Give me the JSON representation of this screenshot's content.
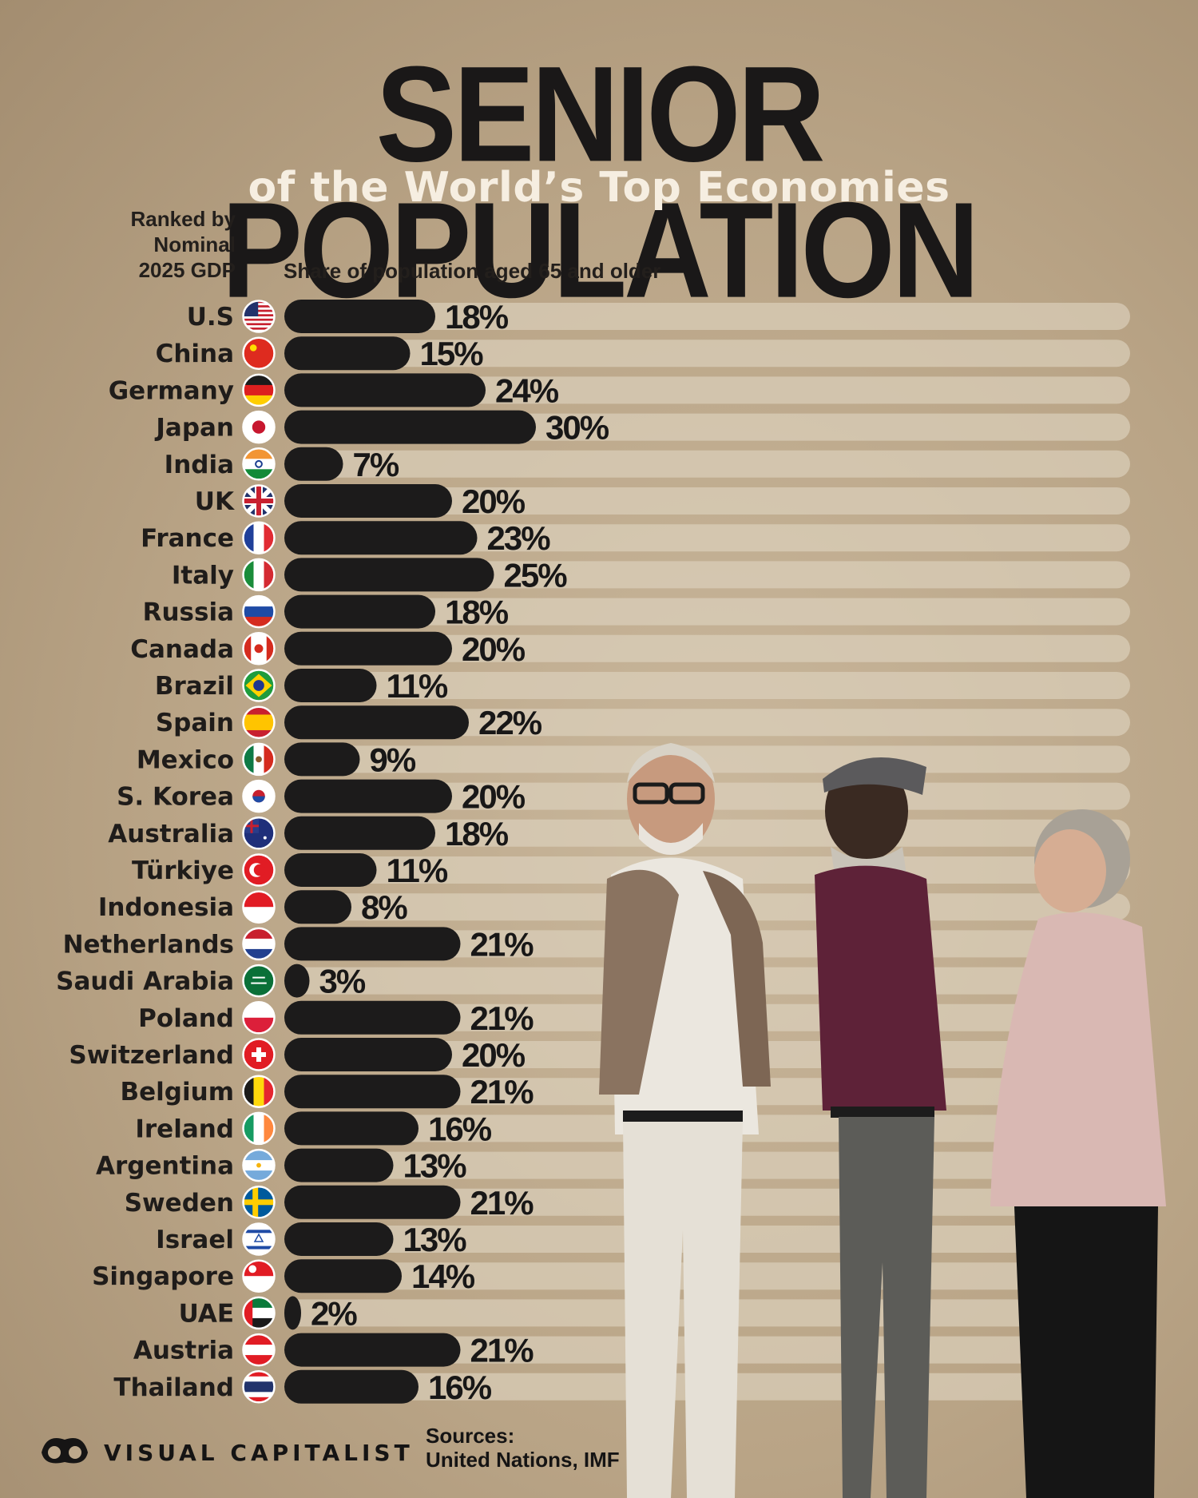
{
  "title": "SENIOR POPULATION",
  "subtitle": "of the World’s Top Economies",
  "rank_note": [
    "Ranked by",
    "Nominal",
    "2025 GDP"
  ],
  "axis_label": "Share of population aged 65 and older",
  "brand": "VISUAL CAPITALIST",
  "sources": {
    "heading": "Sources:",
    "text": "United Nations, IMF"
  },
  "colors": {
    "bar": "#1c1b1b",
    "track": "#ddd2be",
    "background": "#bca88b"
  },
  "chart_data": {
    "type": "bar",
    "orientation": "horizontal",
    "value_unit": "%",
    "categories": [
      "U.S",
      "China",
      "Germany",
      "Japan",
      "India",
      "UK",
      "France",
      "Italy",
      "Russia",
      "Canada",
      "Brazil",
      "Spain",
      "Mexico",
      "S. Korea",
      "Australia",
      "Türkiye",
      "Indonesia",
      "Netherlands",
      "Saudi Arabia",
      "Poland",
      "Switzerland",
      "Belgium",
      "Ireland",
      "Argentina",
      "Sweden",
      "Israel",
      "Singapore",
      "UAE",
      "Austria",
      "Thailand"
    ],
    "values": [
      18,
      15,
      24,
      30,
      7,
      20,
      23,
      25,
      18,
      20,
      11,
      22,
      9,
      20,
      18,
      11,
      8,
      21,
      3,
      21,
      20,
      21,
      16,
      13,
      21,
      13,
      14,
      2,
      21,
      16
    ],
    "value_labels": [
      "18%",
      "15%",
      "24%",
      "30%",
      "7%",
      "20%",
      "23%",
      "25%",
      "18%",
      "20%",
      "11%",
      "22%",
      "9%",
      "20%",
      "18%",
      "11%",
      "8%",
      "21%",
      "3%",
      "21%",
      "20%",
      "21%",
      "16%",
      "13%",
      "21%",
      "13%",
      "14%",
      "2%",
      "21%",
      "16%"
    ],
    "flag_icons": [
      "flag-us-icon",
      "flag-china-icon",
      "flag-germany-icon",
      "flag-japan-icon",
      "flag-india-icon",
      "flag-uk-icon",
      "flag-france-icon",
      "flag-italy-icon",
      "flag-russia-icon",
      "flag-canada-icon",
      "flag-brazil-icon",
      "flag-spain-icon",
      "flag-mexico-icon",
      "flag-south-korea-icon",
      "flag-australia-icon",
      "flag-turkiye-icon",
      "flag-indonesia-icon",
      "flag-netherlands-icon",
      "flag-saudi-arabia-icon",
      "flag-poland-icon",
      "flag-switzerland-icon",
      "flag-belgium-icon",
      "flag-ireland-icon",
      "flag-argentina-icon",
      "flag-sweden-icon",
      "flag-israel-icon",
      "flag-singapore-icon",
      "flag-uae-icon",
      "flag-austria-icon",
      "flag-thailand-icon"
    ],
    "xlim": [
      0,
      100
    ],
    "grid": false
  }
}
